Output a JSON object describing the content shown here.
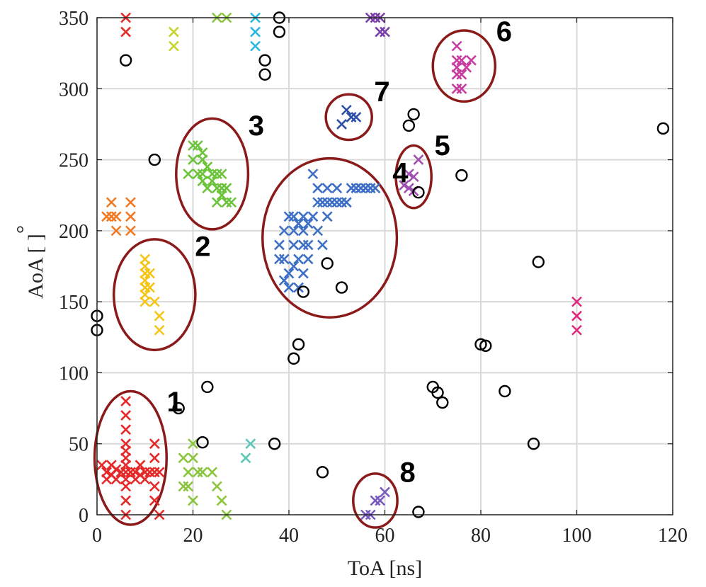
{
  "chart_data": {
    "type": "scatter",
    "title": "",
    "xlabel": "ToA [ns]",
    "ylabel": "AoA [ ]",
    "ylabel_degree_mark": "°",
    "xlim": [
      0,
      120
    ],
    "ylim": [
      0,
      350
    ],
    "xticks": [
      0,
      20,
      40,
      60,
      80,
      100,
      120
    ],
    "yticks": [
      0,
      50,
      100,
      150,
      200,
      250,
      300,
      350
    ],
    "grid": true,
    "legend": "none",
    "series": [
      {
        "marker": "x",
        "color": "#e52828",
        "points": [
          [
            6,
            350
          ],
          [
            6,
            340
          ],
          [
            6,
            80
          ],
          [
            6,
            70
          ],
          [
            6,
            60
          ],
          [
            6,
            50
          ],
          [
            6,
            45
          ],
          [
            6,
            40
          ],
          [
            6,
            35
          ],
          [
            6,
            30
          ],
          [
            6,
            25
          ],
          [
            6,
            20
          ],
          [
            6,
            10
          ],
          [
            6,
            0
          ],
          [
            1,
            35
          ],
          [
            2,
            30
          ],
          [
            3,
            28
          ],
          [
            4,
            32
          ],
          [
            5,
            30
          ],
          [
            7,
            30
          ],
          [
            8,
            30
          ],
          [
            9,
            28
          ],
          [
            10,
            30
          ],
          [
            11,
            30
          ],
          [
            12,
            30
          ],
          [
            13,
            30
          ],
          [
            2,
            25
          ],
          [
            4,
            25
          ],
          [
            8,
            25
          ],
          [
            10,
            25
          ],
          [
            3,
            35
          ],
          [
            9,
            35
          ],
          [
            12,
            50
          ],
          [
            12,
            40
          ],
          [
            12,
            20
          ],
          [
            12,
            10
          ],
          [
            13,
            0
          ]
        ]
      },
      {
        "marker": "x",
        "color": "#8cc63f",
        "points": [
          [
            25,
            350
          ],
          [
            27,
            350
          ],
          [
            18,
            40
          ],
          [
            19,
            30
          ],
          [
            20,
            50
          ],
          [
            20,
            40
          ],
          [
            19,
            20
          ],
          [
            21,
            30
          ],
          [
            22,
            30
          ],
          [
            24,
            30
          ],
          [
            25,
            20
          ],
          [
            26,
            10
          ],
          [
            27,
            0
          ],
          [
            20,
            10
          ],
          [
            18,
            20
          ]
        ]
      },
      {
        "marker": "x",
        "color": "#6cc43b",
        "points": [
          [
            20,
            260
          ],
          [
            21,
            260
          ],
          [
            22,
            255
          ],
          [
            20,
            250
          ],
          [
            22,
            250
          ],
          [
            23,
            245
          ],
          [
            19,
            240
          ],
          [
            21,
            240
          ],
          [
            22,
            240
          ],
          [
            24,
            240
          ],
          [
            25,
            240
          ],
          [
            26,
            240
          ],
          [
            22,
            235
          ],
          [
            24,
            235
          ],
          [
            23,
            230
          ],
          [
            25,
            230
          ],
          [
            26,
            230
          ],
          [
            27,
            230
          ],
          [
            26,
            225
          ],
          [
            25,
            220
          ],
          [
            27,
            220
          ],
          [
            28,
            220
          ]
        ]
      },
      {
        "marker": "x",
        "color": "#c8d42c",
        "points": [
          [
            16,
            340
          ],
          [
            16,
            330
          ]
        ]
      },
      {
        "marker": "x",
        "color": "#f5c518",
        "points": [
          [
            10,
            180
          ],
          [
            10,
            175
          ],
          [
            10,
            170
          ],
          [
            10,
            165
          ],
          [
            10,
            160
          ],
          [
            10,
            155
          ],
          [
            10,
            150
          ],
          [
            11,
            170
          ],
          [
            11,
            160
          ],
          [
            12,
            150
          ],
          [
            13,
            140
          ],
          [
            13,
            130
          ]
        ]
      },
      {
        "marker": "x",
        "color": "#f07a24",
        "points": [
          [
            2,
            210
          ],
          [
            3,
            210
          ],
          [
            4,
            210
          ],
          [
            3,
            220
          ],
          [
            4,
            200
          ],
          [
            7,
            220
          ],
          [
            7,
            210
          ],
          [
            7,
            200
          ]
        ]
      },
      {
        "marker": "x",
        "color": "#2ab8e0",
        "points": [
          [
            33,
            350
          ],
          [
            33,
            340
          ],
          [
            33,
            330
          ]
        ]
      },
      {
        "marker": "x",
        "color": "#5ec8b8",
        "points": [
          [
            31,
            40
          ],
          [
            32,
            50
          ]
        ]
      },
      {
        "marker": "x",
        "color": "#3d6fc4",
        "points": [
          [
            38,
            190
          ],
          [
            39,
            180
          ],
          [
            40,
            170
          ],
          [
            40,
            160
          ],
          [
            41,
            190
          ],
          [
            41,
            200
          ],
          [
            42,
            160
          ],
          [
            42,
            180
          ],
          [
            43,
            190
          ],
          [
            43,
            200
          ],
          [
            44,
            190
          ],
          [
            43,
            210
          ],
          [
            45,
            210
          ],
          [
            46,
            220
          ],
          [
            47,
            220
          ],
          [
            48,
            220
          ],
          [
            49,
            220
          ],
          [
            50,
            220
          ],
          [
            51,
            220
          ],
          [
            52,
            220
          ],
          [
            53,
            230
          ],
          [
            54,
            230
          ],
          [
            55,
            230
          ],
          [
            56,
            230
          ],
          [
            57,
            230
          ],
          [
            58,
            230
          ],
          [
            45,
            240
          ],
          [
            46,
            230
          ],
          [
            48,
            230
          ],
          [
            50,
            230
          ],
          [
            52,
            220
          ],
          [
            39,
            200
          ],
          [
            40,
            210
          ],
          [
            41,
            210
          ],
          [
            42,
            205
          ],
          [
            44,
            205
          ],
          [
            38,
            180
          ],
          [
            39,
            165
          ],
          [
            41,
            175
          ],
          [
            43,
            170
          ],
          [
            44,
            180
          ],
          [
            46,
            200
          ],
          [
            47,
            190
          ],
          [
            48,
            210
          ]
        ]
      },
      {
        "marker": "x",
        "color": "#2e4fa8",
        "points": [
          [
            51,
            275
          ],
          [
            52,
            285
          ],
          [
            53,
            280
          ],
          [
            54,
            280
          ]
        ]
      },
      {
        "marker": "x",
        "color": "#a050b0",
        "points": [
          [
            64,
            232
          ],
          [
            65,
            240
          ],
          [
            65,
            230
          ],
          [
            66,
            238
          ],
          [
            67,
            250
          ],
          [
            66,
            228
          ]
        ]
      },
      {
        "marker": "x",
        "color": "#c83ea0",
        "points": [
          [
            75,
            330
          ],
          [
            75,
            320
          ],
          [
            75,
            315
          ],
          [
            75,
            310
          ],
          [
            75,
            300
          ],
          [
            76,
            320
          ],
          [
            77,
            315
          ],
          [
            78,
            320
          ],
          [
            76,
            300
          ],
          [
            76,
            310
          ]
        ]
      },
      {
        "marker": "x",
        "color": "#7a3fa8",
        "points": [
          [
            57,
            350
          ],
          [
            58,
            350
          ],
          [
            59,
            350
          ],
          [
            59,
            340
          ],
          [
            60,
            340
          ]
        ]
      },
      {
        "marker": "x",
        "color": "#7a5cc0",
        "points": [
          [
            56,
            0
          ],
          [
            57,
            0
          ],
          [
            58,
            10
          ],
          [
            59,
            10
          ],
          [
            60,
            16
          ]
        ]
      },
      {
        "marker": "x",
        "color": "#e0287a",
        "points": [
          [
            100,
            150
          ],
          [
            100,
            140
          ],
          [
            100,
            130
          ]
        ]
      },
      {
        "marker": "o",
        "color": "#000000",
        "points": [
          [
            6,
            320
          ],
          [
            12,
            250
          ],
          [
            0,
            140
          ],
          [
            0,
            130
          ],
          [
            17,
            75
          ],
          [
            23,
            90
          ],
          [
            22,
            51
          ],
          [
            35,
            320
          ],
          [
            35,
            310
          ],
          [
            38,
            350
          ],
          [
            38,
            340
          ],
          [
            37,
            50
          ],
          [
            41,
            110
          ],
          [
            42,
            120
          ],
          [
            43,
            157
          ],
          [
            48,
            177
          ],
          [
            51,
            160
          ],
          [
            47,
            30
          ],
          [
            65,
            274
          ],
          [
            66,
            282
          ],
          [
            67,
            227
          ],
          [
            67,
            2
          ],
          [
            70,
            90
          ],
          [
            71,
            86
          ],
          [
            72,
            79
          ],
          [
            76,
            239
          ],
          [
            80,
            120
          ],
          [
            81,
            119
          ],
          [
            85,
            87
          ],
          [
            91,
            50
          ],
          [
            92,
            178
          ],
          [
            118,
            272
          ]
        ]
      }
    ],
    "annotations": [
      {
        "label": "1",
        "cx": 7,
        "cy": 40,
        "rx": 7.5,
        "ry": 47
      },
      {
        "label": "2",
        "cx": 12,
        "cy": 155,
        "rx": 8.5,
        "ry": 39
      },
      {
        "label": "3",
        "cx": 24,
        "cy": 240,
        "rx": 7.5,
        "ry": 39
      },
      {
        "label": "4",
        "cx": 48.5,
        "cy": 195,
        "rx": 14,
        "ry": 56
      },
      {
        "label": "5",
        "cx": 66,
        "cy": 238,
        "rx": 3.7,
        "ry": 22
      },
      {
        "label": "6",
        "cx": 76.5,
        "cy": 316,
        "rx": 6.5,
        "ry": 25
      },
      {
        "label": "7",
        "cx": 52.5,
        "cy": 280,
        "rx": 4.8,
        "ry": 16
      },
      {
        "label": "8",
        "cx": 58,
        "cy": 10,
        "rx": 4.6,
        "ry": 19
      }
    ]
  }
}
